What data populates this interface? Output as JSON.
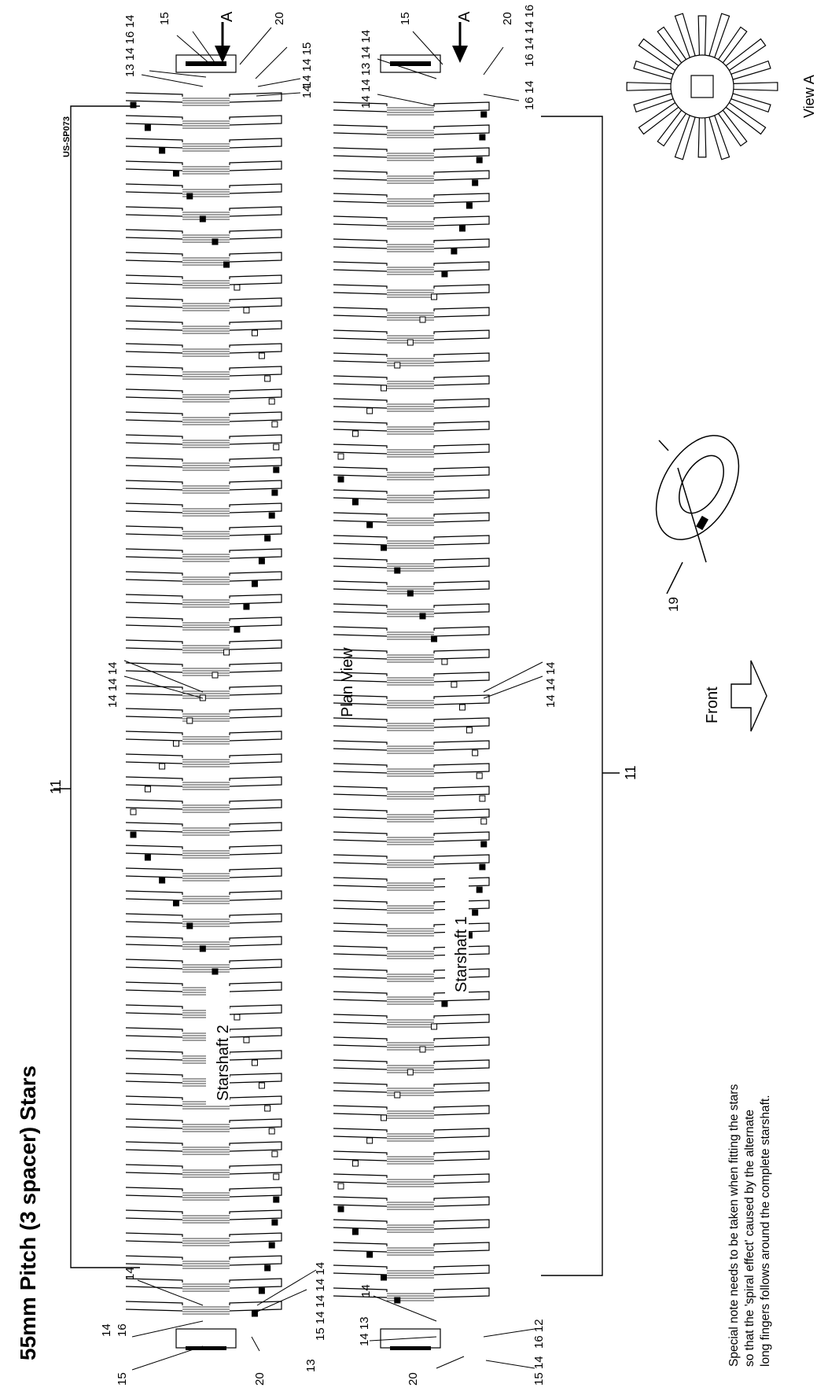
{
  "title": "55mm Pitch (3 spacer) Stars",
  "drawing_code": "US-SP073",
  "plan_view_label": "Plan View",
  "view_a_label": "View A",
  "front_label": "Front",
  "section_arrow_label": "A",
  "starshaft_2_label": "Starshaft 2",
  "starshaft_1_label": "Starshaft 1",
  "note_lines": [
    "Special note needs to be taken when fitting the stars",
    "so that the 'spiral effect' caused by the alternate",
    "long fingers follows around the complete starshaft."
  ],
  "part_labels": {
    "shaft_assembly": "11",
    "bearing_12": "12",
    "part_13": "13",
    "spacer_14": "14",
    "part_15": "15",
    "part_16": "16",
    "washer_19": "19",
    "part_20": "20"
  },
  "label_groups": {
    "s2_top": "13 14 16 14",
    "s2_top_right": "15",
    "s2_right_stack_1": "14 14 15",
    "s2_right_stack_2": "14",
    "s2_mid": "14 14 14",
    "s2_bottom_right": "15 14 14 14 14",
    "s1_top_left": "14 14 13 14 14",
    "s1_top_right": "16 14 14 16",
    "s1_top_right_2": "16 14",
    "s1_mid": "14 14 14",
    "s1_bottom_left": "14 13",
    "s1_bottom_right": "16 12",
    "s1_bottom_right_2": "15 14"
  }
}
